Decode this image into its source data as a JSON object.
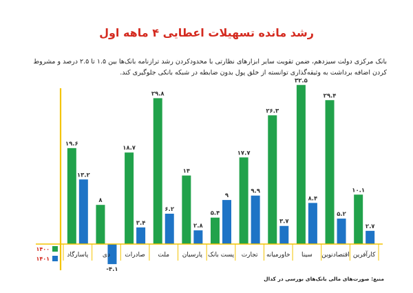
{
  "title": "رشد مانده تسهیلات اعطایی ۴ ماهه اول",
  "description": "بانک مرکزی دولت سیزدهم، ضمن تقویت سایر ابزارهای نظارتی با محدودکردن رشد ترازنامه بانک‌ها بین ۱.۵ تا ۲.۵ درصد و مشروط کردن اضافه برداشت به وثیقه‌گذاری توانسته از خلق پول بدون ضابطه در شبکه بانکی جلوگیری کند.",
  "source": "منبع: صورت‌های مالی بانک‌های بورسی در کدال",
  "colors": {
    "s1400": "#21a24b",
    "s1401": "#1e74c6",
    "axis": "#f4c400",
    "text": "#333333"
  },
  "chart_data": {
    "type": "bar",
    "categories": [
      "پاسارگاد",
      "دی",
      "صادرات",
      "ملت",
      "پارسیان",
      "پست بانک",
      "تجارت",
      "خاورمیانه",
      "سینا",
      "اقتصادنوین",
      "کارآفرین"
    ],
    "series": [
      {
        "name": "۱۴۰۰",
        "values": [
          19.6,
          8,
          18.7,
          29.8,
          14,
          5.4,
          17.7,
          26.3,
          32.5,
          29.4,
          10.1
        ],
        "labels": [
          "۱۹.۶",
          "۸",
          "۱۸.۷",
          "۲۹.۸",
          "۱۴",
          "۵.۴",
          "۱۷.۷",
          "۲۶.۳",
          "۳۲.۵",
          "۲۹.۴",
          "۱۰.۱"
        ]
      },
      {
        "name": "۱۴۰۱",
        "values": [
          13.2,
          -4.1,
          3.4,
          6.2,
          2.8,
          9,
          9.9,
          3.7,
          8.4,
          5.2,
          2.7
        ],
        "labels": [
          "۱۳.۲",
          "-۴.۱",
          "۳.۴",
          "۶.۲",
          "۲.۸",
          "۹",
          "۹.۹",
          "۳.۷",
          "۸.۴",
          "۵.۲",
          "۲.۷"
        ]
      }
    ],
    "ylim": [
      -6,
      35
    ],
    "legend": "bottom-left",
    "grid": false
  }
}
